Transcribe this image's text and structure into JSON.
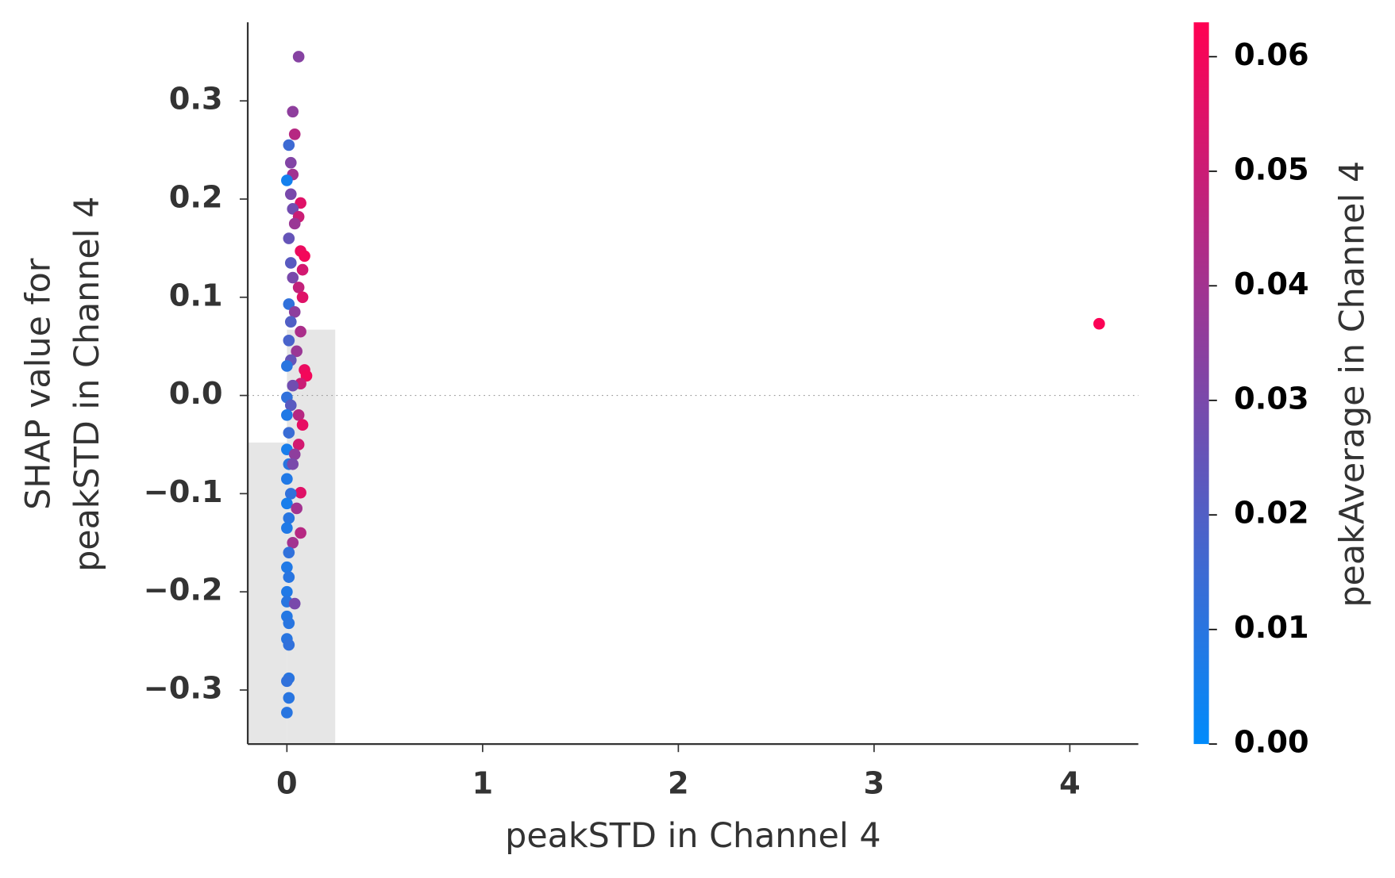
{
  "chart_data": {
    "type": "scatter",
    "xlabel": "peakSTD in Channel 4",
    "ylabel": [
      "SHAP value for",
      "peakSTD in Channel 4"
    ],
    "colorbar_label": "peakAverage in Channel 4",
    "xlim": [
      -0.2,
      4.35
    ],
    "ylim": [
      -0.355,
      0.38
    ],
    "xticks": [
      0,
      1,
      2,
      3,
      4
    ],
    "yticks": [
      {
        "value": -0.3,
        "label": "−0.3"
      },
      {
        "value": -0.2,
        "label": "−0.2"
      },
      {
        "value": -0.1,
        "label": "−0.1"
      },
      {
        "value": 0,
        "label": "0.0"
      },
      0.1,
      0.2,
      0.3
    ],
    "clim": [
      0,
      0.063
    ],
    "cticks": [
      {
        "value": 0,
        "label": "0.00"
      },
      {
        "value": 0.01,
        "label": "0.01"
      },
      {
        "value": 0.02,
        "label": "0.02"
      },
      {
        "value": 0.03,
        "label": "0.03"
      },
      {
        "value": 0.04,
        "label": "0.04"
      },
      {
        "value": 0.05,
        "label": "0.05"
      },
      {
        "value": 0.06,
        "label": "0.06"
      }
    ],
    "colormap": [
      "#008bfb",
      "#ff0052"
    ],
    "zero_line": true,
    "histogram": {
      "bins": [
        -0.2,
        0.0,
        0.247
      ],
      "tops": [
        -0.048,
        0.067
      ],
      "color": "#e6e6e6"
    },
    "series": [
      {
        "x": [
          0.06,
          0.03,
          0.04,
          0.01,
          0.02,
          0.03,
          0.0,
          0.02,
          0.07,
          0.03,
          0.06,
          0.04,
          0.01,
          0.07,
          0.09,
          0.02,
          0.08,
          0.03,
          0.06,
          0.08,
          0.01,
          0.04,
          0.02,
          0.07,
          0.01,
          0.05,
          0.02,
          0.0,
          0.09,
          0.1,
          0.07,
          0.03,
          0.0,
          0.02,
          0.06,
          0.0,
          0.08,
          0.01,
          0.06,
          0.0,
          0.04,
          0.01,
          0.03,
          0.0,
          0.07,
          0.02,
          0.0,
          0.05,
          0.01,
          0.07,
          0.0,
          0.03,
          0.01,
          0.0,
          0.01,
          0.0,
          0.0,
          0.04,
          0.0,
          0.01,
          0.0,
          0.01,
          0.01,
          0.0,
          0.01,
          0.0,
          4.15
        ],
        "values": [
          0.345,
          0.289,
          0.266,
          0.255,
          0.237,
          0.225,
          0.219,
          0.205,
          0.196,
          0.19,
          0.182,
          0.175,
          0.16,
          0.147,
          0.142,
          0.135,
          0.128,
          0.12,
          0.11,
          0.1,
          0.093,
          0.085,
          0.075,
          0.065,
          0.056,
          0.045,
          0.036,
          0.03,
          0.026,
          0.02,
          0.012,
          0.01,
          -0.002,
          -0.01,
          -0.02,
          -0.02,
          -0.03,
          -0.038,
          -0.05,
          -0.055,
          -0.06,
          -0.07,
          -0.07,
          -0.085,
          -0.099,
          -0.1,
          -0.11,
          -0.115,
          -0.125,
          -0.14,
          -0.135,
          -0.15,
          -0.16,
          -0.175,
          -0.185,
          -0.2,
          -0.21,
          -0.212,
          -0.225,
          -0.232,
          -0.248,
          -0.254,
          -0.288,
          -0.291,
          -0.308,
          -0.323,
          0.073
        ],
        "color_values": [
          0.033,
          0.035,
          0.045,
          0.015,
          0.032,
          0.04,
          0.005,
          0.03,
          0.055,
          0.028,
          0.05,
          0.038,
          0.025,
          0.058,
          0.06,
          0.022,
          0.052,
          0.03,
          0.048,
          0.055,
          0.012,
          0.035,
          0.02,
          0.042,
          0.018,
          0.038,
          0.025,
          0.01,
          0.058,
          0.06,
          0.05,
          0.028,
          0.012,
          0.022,
          0.045,
          0.008,
          0.057,
          0.014,
          0.052,
          0.006,
          0.035,
          0.01,
          0.03,
          0.008,
          0.055,
          0.012,
          0.006,
          0.04,
          0.01,
          0.045,
          0.008,
          0.04,
          0.012,
          0.008,
          0.01,
          0.008,
          0.01,
          0.03,
          0.009,
          0.01,
          0.01,
          0.012,
          0.01,
          0.012,
          0.01,
          0.01,
          0.062
        ]
      }
    ]
  }
}
